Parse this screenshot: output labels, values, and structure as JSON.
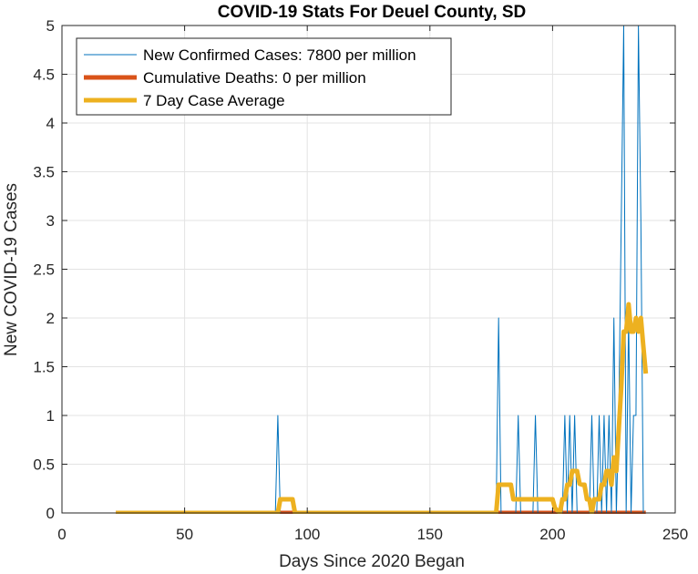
{
  "chart_data": {
    "type": "line",
    "title": "COVID-19 Stats For Deuel County, SD",
    "xlabel": "Days Since 2020 Began",
    "ylabel": "New COVID-19 Cases",
    "xlim": [
      0,
      250
    ],
    "ylim": [
      0,
      5
    ],
    "xticks": [
      0,
      50,
      100,
      150,
      200,
      250
    ],
    "xtick_labels": [
      "0",
      "50",
      "100",
      "150",
      "200",
      "250"
    ],
    "yticks": [
      0,
      0.5,
      1,
      1.5,
      2,
      2.5,
      3,
      3.5,
      4,
      4.5,
      5
    ],
    "ytick_labels": [
      "0",
      "0.5",
      "1",
      "1.5",
      "2",
      "2.5",
      "3",
      "3.5",
      "4",
      "4.5",
      "5"
    ],
    "grid": true,
    "legend_position": "top-left",
    "series": [
      {
        "name": "New Confirmed Cases: 7800 per million",
        "color": "#0072BD",
        "x": [
          22,
          87,
          88,
          89,
          177,
          178,
          179,
          185,
          186,
          187,
          192,
          193,
          194,
          204,
          205,
          206,
          207,
          208,
          209,
          210,
          215,
          216,
          217,
          218,
          219,
          220,
          221,
          222,
          223,
          224,
          225,
          226,
          227,
          228,
          229,
          230,
          231,
          232,
          233,
          234,
          235,
          236,
          237,
          238
        ],
        "y": [
          0,
          0,
          1,
          0,
          0,
          2,
          0,
          0,
          1,
          0,
          0,
          1,
          0,
          0,
          1,
          0,
          1,
          0,
          1,
          0,
          0,
          1,
          0,
          0,
          1,
          0,
          1,
          0,
          1,
          0,
          2,
          0,
          1,
          3,
          5,
          0,
          2,
          0,
          1,
          1,
          5,
          3,
          0,
          0
        ]
      },
      {
        "name": "Cumulative Deaths: 0 per million",
        "color": "#D95319",
        "x": [
          22,
          238
        ],
        "y": [
          0,
          0
        ]
      },
      {
        "name": "7 Day Case Average",
        "color": "#EDB120",
        "x": [
          22,
          88,
          89,
          94,
          95,
          177,
          178,
          183,
          184,
          186,
          187,
          200,
          201,
          203,
          204,
          205,
          206,
          207,
          208,
          209,
          210,
          211,
          212,
          213,
          214,
          215,
          216,
          217,
          218,
          219,
          220,
          221,
          222,
          223,
          224,
          225,
          226,
          227,
          228,
          229,
          230,
          231,
          232,
          233,
          234,
          235,
          236,
          237,
          238
        ],
        "y": [
          0,
          0,
          0.14,
          0.14,
          0,
          0,
          0.29,
          0.29,
          0.14,
          0.14,
          0.14,
          0.14,
          0.05,
          0,
          0.14,
          0.14,
          0.29,
          0.29,
          0.43,
          0.43,
          0.43,
          0.3,
          0.29,
          0.29,
          0.14,
          0.14,
          0,
          0.14,
          0.14,
          0.14,
          0.29,
          0.29,
          0.43,
          0.43,
          0.29,
          0.57,
          0.43,
          0.86,
          1.29,
          1.86,
          1.86,
          2.14,
          1.86,
          1.86,
          2.0,
          1.86,
          2.0,
          1.71,
          1.43
        ]
      }
    ]
  }
}
